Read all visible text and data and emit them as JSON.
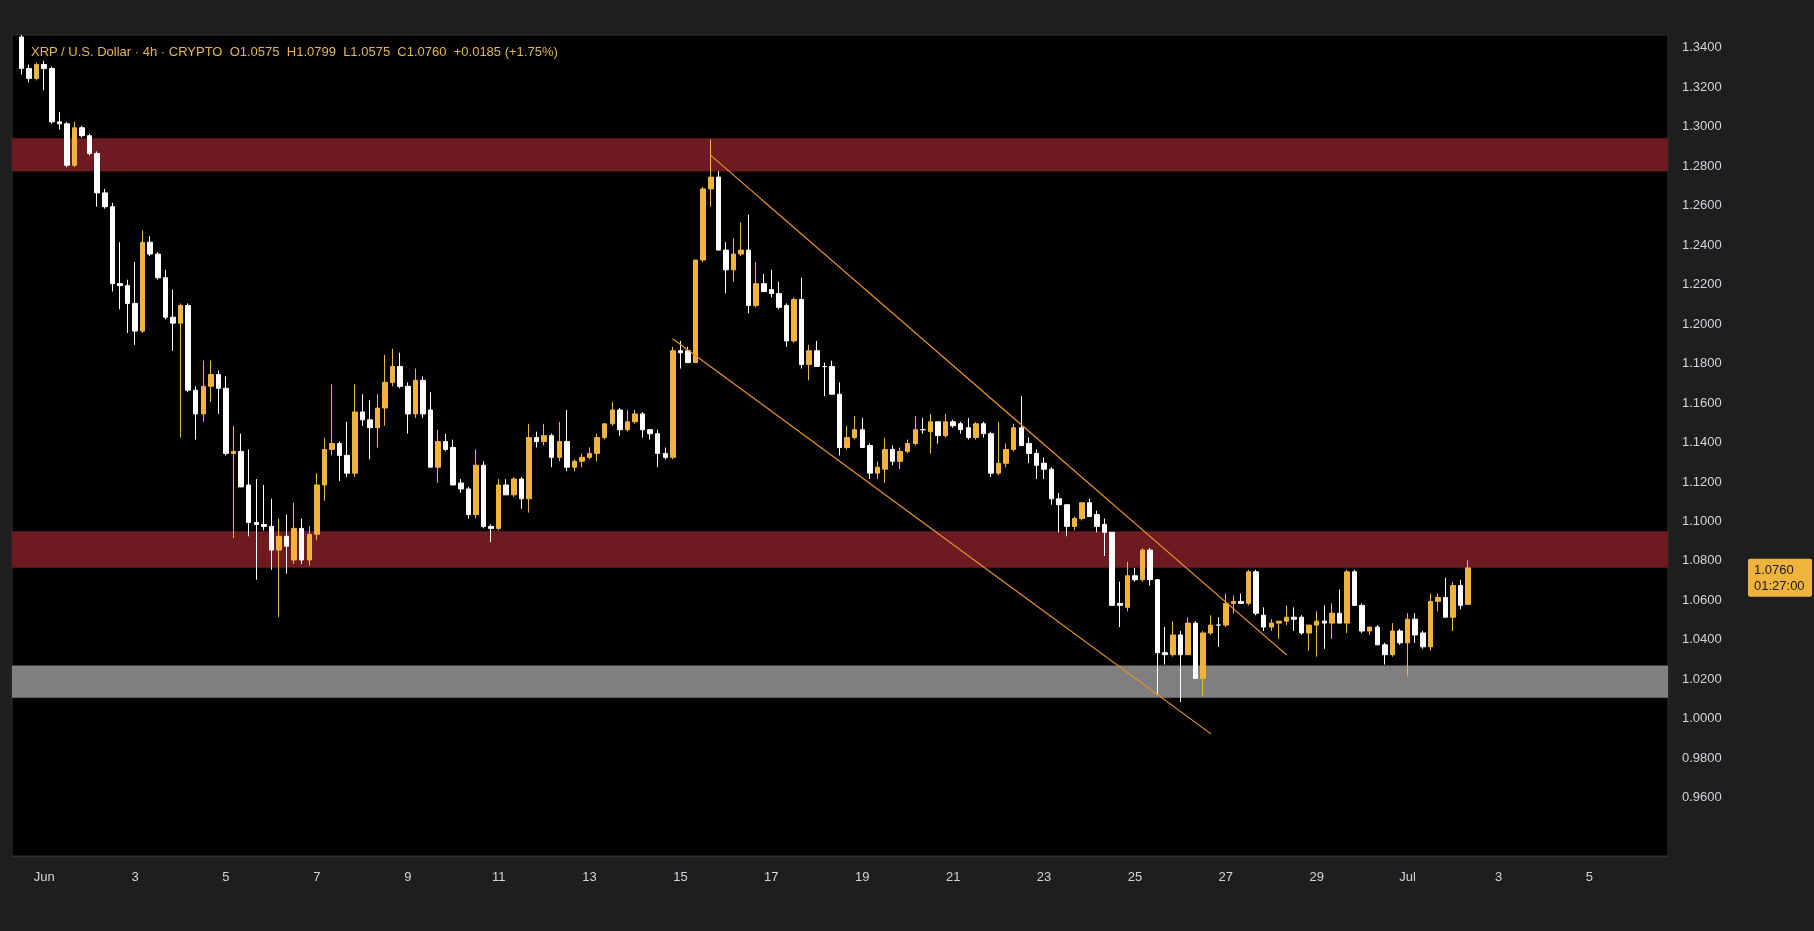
{
  "chart_data": {
    "type": "candlestick",
    "title": "XRP / U.S. Dollar · 4h · CRYPTO  O1.0575  H1.0799  L1.0575  C1.0760  +0.0185 (+1.75%)",
    "x": [
      "--05-31T12:00",
      "--05-31T16:00",
      "--05-31T20:00",
      "--06-01T00:00",
      "--06-01T04:00",
      "--06-01T08:00",
      "--06-01T12:00",
      "--06-01T16:00",
      "--06-01T20:00",
      "--06-02T00:00",
      "--06-02T04:00",
      "--06-02T08:00",
      "--06-02T12:00",
      "--06-02T16:00",
      "--06-02T20:00",
      "--06-03T00:00",
      "--06-03T04:00",
      "--06-03T08:00",
      "--06-03T12:00",
      "--06-03T16:00",
      "--06-03T20:00",
      "--06-04T00:00",
      "--06-04T04:00",
      "--06-04T08:00",
      "--06-04T12:00",
      "--06-04T16:00",
      "--06-04T20:00",
      "--06-05T00:00",
      "--06-05T04:00",
      "--06-05T08:00",
      "--06-05T12:00",
      "--06-05T16:00",
      "--06-05T20:00",
      "--06-06T00:00",
      "--06-06T04:00",
      "--06-06T08:00",
      "--06-06T12:00",
      "--06-06T16:00",
      "--06-06T20:00",
      "--06-07T00:00",
      "--06-07T04:00",
      "--06-07T08:00",
      "--06-07T12:00",
      "--06-07T16:00",
      "--06-07T20:00",
      "--06-08T00:00",
      "--06-08T04:00",
      "--06-08T08:00",
      "--06-08T12:00",
      "--06-08T16:00",
      "--06-08T20:00",
      "--06-09T00:00",
      "--06-09T04:00",
      "--06-09T08:00",
      "--06-09T12:00",
      "--06-09T16:00",
      "--06-09T20:00",
      "--06-10T00:00",
      "--06-10T04:00",
      "--06-10T08:00",
      "--06-10T12:00",
      "--06-10T16:00",
      "--06-10T20:00",
      "--06-11T00:00",
      "--06-11T04:00",
      "--06-11T08:00",
      "--06-11T12:00",
      "--06-11T16:00",
      "--06-11T20:00",
      "--06-12T00:00",
      "--06-12T04:00",
      "--06-12T08:00",
      "--06-12T12:00",
      "--06-12T16:00",
      "--06-12T20:00",
      "--06-13T00:00",
      "--06-13T04:00",
      "--06-13T08:00",
      "--06-13T12:00",
      "--06-13T16:00",
      "--06-13T20:00",
      "--06-14T00:00",
      "--06-14T04:00",
      "--06-14T08:00",
      "--06-14T12:00",
      "--06-14T16:00",
      "--06-14T20:00",
      "--06-15T00:00",
      "--06-15T04:00",
      "--06-15T08:00",
      "--06-15T12:00",
      "--06-15T16:00",
      "--06-15T20:00",
      "--06-16T00:00",
      "--06-16T04:00",
      "--06-16T08:00",
      "--06-16T12:00",
      "--06-16T16:00",
      "--06-16T20:00",
      "--06-17T00:00",
      "--06-17T04:00",
      "--06-17T08:00",
      "--06-17T12:00",
      "--06-17T16:00",
      "--06-17T20:00",
      "--06-18T00:00",
      "--06-18T04:00",
      "--06-18T08:00",
      "--06-18T12:00",
      "--06-18T16:00",
      "--06-18T20:00",
      "--06-19T00:00",
      "--06-19T04:00",
      "--06-19T08:00",
      "--06-19T12:00",
      "--06-19T16:00",
      "--06-19T20:00",
      "--06-20T00:00",
      "--06-20T04:00",
      "--06-20T08:00",
      "--06-20T12:00",
      "--06-20T16:00",
      "--06-20T20:00",
      "--06-21T00:00",
      "--06-21T04:00",
      "--06-21T08:00",
      "--06-21T12:00",
      "--06-21T16:00",
      "--06-21T20:00",
      "--06-22T00:00",
      "--06-22T04:00",
      "--06-22T08:00",
      "--06-22T12:00",
      "--06-22T16:00",
      "--06-22T20:00",
      "--06-23T00:00",
      "--06-23T04:00",
      "--06-23T08:00",
      "--06-23T12:00",
      "--06-23T16:00",
      "--06-23T20:00",
      "--06-24T00:00",
      "--06-24T04:00",
      "--06-24T08:00",
      "--06-24T12:00",
      "--06-24T16:00",
      "--06-24T20:00",
      "--06-25T00:00",
      "--06-25T04:00",
      "--06-25T08:00",
      "--06-25T12:00",
      "--06-25T16:00",
      "--06-25T20:00",
      "--06-26T00:00",
      "--06-26T04:00",
      "--06-26T08:00",
      "--06-26T12:00",
      "--06-26T16:00",
      "--06-26T20:00",
      "--06-27T00:00",
      "--06-27T04:00",
      "--06-27T08:00",
      "--06-27T12:00",
      "--06-27T16:00",
      "--06-27T20:00",
      "--06-28T00:00",
      "--06-28T04:00",
      "--06-28T08:00",
      "--06-28T12:00",
      "--06-28T16:00",
      "--06-28T20:00",
      "--06-29T00:00",
      "--06-29T04:00",
      "--06-29T08:00",
      "--06-29T12:00",
      "--06-29T16:00",
      "--06-29T20:00",
      "--06-30T00:00",
      "--06-30T04:00",
      "--06-30T08:00",
      "--06-30T12:00",
      "--06-30T16:00",
      "--06-30T20:00",
      "--07-01T00:00",
      "--07-01T04:00",
      "--07-01T08:00",
      "--07-01T12:00",
      "--07-01T16:00",
      "--07-01T20:00",
      "--07-02T00:00",
      "--07-02T04:00",
      "--07-02T08:00"
    ],
    "ohlc": [
      [
        1.345,
        1.346,
        1.326,
        1.329
      ],
      [
        1.329,
        1.331,
        1.322,
        1.324
      ],
      [
        1.324,
        1.332,
        1.323,
        1.331
      ],
      [
        1.331,
        1.333,
        1.318,
        1.329
      ],
      [
        1.329,
        1.33,
        1.301,
        1.302
      ],
      [
        1.302,
        1.307,
        1.298,
        1.301
      ],
      [
        1.301,
        1.302,
        1.279,
        1.28
      ],
      [
        1.28,
        1.302,
        1.279,
        1.299
      ],
      [
        1.299,
        1.3,
        1.294,
        1.295
      ],
      [
        1.295,
        1.296,
        1.285,
        1.286
      ],
      [
        1.286,
        1.287,
        1.259,
        1.266
      ],
      [
        1.266,
        1.268,
        1.258,
        1.259
      ],
      [
        1.259,
        1.261,
        1.216,
        1.22
      ],
      [
        1.22,
        1.241,
        1.207,
        1.219
      ],
      [
        1.219,
        1.222,
        1.195,
        1.21
      ],
      [
        1.21,
        1.231,
        1.189,
        1.196
      ],
      [
        1.196,
        1.247,
        1.195,
        1.241
      ],
      [
        1.241,
        1.244,
        1.234,
        1.235
      ],
      [
        1.235,
        1.236,
        1.222,
        1.223
      ],
      [
        1.223,
        1.227,
        1.202,
        1.203
      ],
      [
        1.203,
        1.217,
        1.186,
        1.2
      ],
      [
        1.2,
        1.21,
        1.142,
        1.209
      ],
      [
        1.209,
        1.21,
        1.165,
        1.166
      ],
      [
        1.166,
        1.168,
        1.141,
        1.154
      ],
      [
        1.154,
        1.181,
        1.15,
        1.168
      ],
      [
        1.168,
        1.181,
        1.16,
        1.174
      ],
      [
        1.174,
        1.176,
        1.154,
        1.167
      ],
      [
        1.167,
        1.173,
        1.133,
        1.134
      ],
      [
        1.134,
        1.148,
        1.091,
        1.135
      ],
      [
        1.135,
        1.144,
        1.117,
        1.117
      ],
      [
        1.118,
        1.136,
        1.092,
        1.099
      ],
      [
        1.099,
        1.121,
        1.07,
        1.098
      ],
      [
        1.098,
        1.118,
        1.095,
        1.097
      ],
      [
        1.097,
        1.111,
        1.075,
        1.085
      ],
      [
        1.085,
        1.101,
        1.051,
        1.092
      ],
      [
        1.092,
        1.103,
        1.073,
        1.087
      ],
      [
        1.08,
        1.109,
        1.078,
        1.096
      ],
      [
        1.096,
        1.101,
        1.078,
        1.08
      ],
      [
        1.08,
        1.097,
        1.077,
        1.093
      ],
      [
        1.093,
        1.124,
        1.09,
        1.118
      ],
      [
        1.118,
        1.142,
        1.11,
        1.136
      ],
      [
        1.136,
        1.169,
        1.133,
        1.139
      ],
      [
        1.139,
        1.14,
        1.12,
        1.133
      ],
      [
        1.133,
        1.15,
        1.122,
        1.124
      ],
      [
        1.124,
        1.169,
        1.122,
        1.155
      ],
      [
        1.155,
        1.164,
        1.148,
        1.151
      ],
      [
        1.151,
        1.161,
        1.131,
        1.147
      ],
      [
        1.147,
        1.164,
        1.137,
        1.157
      ],
      [
        1.157,
        1.184,
        1.148,
        1.17
      ],
      [
        1.17,
        1.187,
        1.168,
        1.178
      ],
      [
        1.178,
        1.185,
        1.167,
        1.168
      ],
      [
        1.168,
        1.17,
        1.144,
        1.154
      ],
      [
        1.154,
        1.177,
        1.152,
        1.171
      ],
      [
        1.171,
        1.173,
        1.152,
        1.154
      ],
      [
        1.156,
        1.165,
        1.127,
        1.127
      ],
      [
        1.127,
        1.146,
        1.119,
        1.14
      ],
      [
        1.14,
        1.144,
        1.135,
        1.136
      ],
      [
        1.137,
        1.141,
        1.118,
        1.118
      ],
      [
        1.119,
        1.121,
        1.114,
        1.116
      ],
      [
        1.116,
        1.117,
        1.101,
        1.103
      ],
      [
        1.103,
        1.136,
        1.101,
        1.128
      ],
      [
        1.128,
        1.13,
        1.096,
        1.097
      ],
      [
        1.097,
        1.098,
        1.089,
        1.096
      ],
      [
        1.096,
        1.121,
        1.095,
        1.118
      ],
      [
        1.118,
        1.121,
        1.113,
        1.113
      ],
      [
        1.113,
        1.122,
        1.112,
        1.121
      ],
      [
        1.121,
        1.122,
        1.106,
        1.111
      ],
      [
        1.111,
        1.149,
        1.104,
        1.142
      ],
      [
        1.142,
        1.145,
        1.137,
        1.14
      ],
      [
        1.14,
        1.149,
        1.138,
        1.143
      ],
      [
        1.143,
        1.144,
        1.127,
        1.132
      ],
      [
        1.132,
        1.15,
        1.13,
        1.14
      ],
      [
        1.14,
        1.156,
        1.125,
        1.127
      ],
      [
        1.127,
        1.131,
        1.125,
        1.13
      ],
      [
        1.13,
        1.134,
        1.127,
        1.132
      ],
      [
        1.132,
        1.137,
        1.131,
        1.134
      ],
      [
        1.134,
        1.144,
        1.13,
        1.142
      ],
      [
        1.142,
        1.149,
        1.141,
        1.149
      ],
      [
        1.149,
        1.16,
        1.148,
        1.156
      ],
      [
        1.156,
        1.157,
        1.143,
        1.146
      ],
      [
        1.146,
        1.156,
        1.145,
        1.15
      ],
      [
        1.15,
        1.156,
        1.149,
        1.154
      ],
      [
        1.154,
        1.155,
        1.142,
        1.146
      ],
      [
        1.146,
        1.146,
        1.141,
        1.144
      ],
      [
        1.144,
        1.146,
        1.127,
        1.134
      ],
      [
        1.134,
        1.137,
        1.131,
        1.132
      ],
      [
        1.132,
        1.188,
        1.131,
        1.186
      ],
      [
        1.186,
        1.191,
        1.177,
        1.185
      ],
      [
        1.186,
        1.188,
        1.18,
        1.18
      ],
      [
        1.18,
        1.232,
        1.18,
        1.232
      ],
      [
        1.232,
        1.269,
        1.231,
        1.268
      ],
      [
        1.268,
        1.293,
        1.259,
        1.274
      ],
      [
        1.274,
        1.277,
        1.237,
        1.237
      ],
      [
        1.237,
        1.241,
        1.215,
        1.227
      ],
      [
        1.227,
        1.243,
        1.221,
        1.235
      ],
      [
        1.235,
        1.251,
        1.234,
        1.237
      ],
      [
        1.237,
        1.255,
        1.205,
        1.209
      ],
      [
        1.209,
        1.231,
        1.208,
        1.22
      ],
      [
        1.22,
        1.225,
        1.216,
        1.216
      ],
      [
        1.217,
        1.227,
        1.213,
        1.215
      ],
      [
        1.215,
        1.221,
        1.207,
        1.208
      ],
      [
        1.209,
        1.21,
        1.188,
        1.191
      ],
      [
        1.191,
        1.213,
        1.19,
        1.212
      ],
      [
        1.212,
        1.223,
        1.177,
        1.179
      ],
      [
        1.179,
        1.189,
        1.171,
        1.186
      ],
      [
        1.186,
        1.191,
        1.178,
        1.178
      ],
      [
        1.178,
        1.18,
        1.163,
        1.178
      ],
      [
        1.178,
        1.181,
        1.164,
        1.164
      ],
      [
        1.164,
        1.17,
        1.133,
        1.137
      ],
      [
        1.137,
        1.148,
        1.136,
        1.142
      ],
      [
        1.142,
        1.153,
        1.141,
        1.146
      ],
      [
        1.146,
        1.152,
        1.137,
        1.137
      ],
      [
        1.138,
        1.139,
        1.121,
        1.124
      ],
      [
        1.124,
        1.13,
        1.121,
        1.127
      ],
      [
        1.126,
        1.142,
        1.119,
        1.136
      ],
      [
        1.136,
        1.138,
        1.128,
        1.13
      ],
      [
        1.13,
        1.137,
        1.126,
        1.135
      ],
      [
        1.135,
        1.141,
        1.134,
        1.139
      ],
      [
        1.139,
        1.153,
        1.138,
        1.146
      ],
      [
        1.146,
        1.152,
        1.144,
        1.146
      ],
      [
        1.145,
        1.154,
        1.134,
        1.15
      ],
      [
        1.15,
        1.15,
        1.139,
        1.143
      ],
      [
        1.143,
        1.154,
        1.142,
        1.15
      ],
      [
        1.15,
        1.151,
        1.147,
        1.148
      ],
      [
        1.149,
        1.15,
        1.144,
        1.146
      ],
      [
        1.147,
        1.152,
        1.141,
        1.142
      ],
      [
        1.142,
        1.15,
        1.141,
        1.149
      ],
      [
        1.149,
        1.15,
        1.142,
        1.144
      ],
      [
        1.144,
        1.145,
        1.122,
        1.124
      ],
      [
        1.124,
        1.15,
        1.123,
        1.129
      ],
      [
        1.129,
        1.139,
        1.127,
        1.136
      ],
      [
        1.136,
        1.149,
        1.135,
        1.147
      ],
      [
        1.147,
        1.163,
        1.138,
        1.138
      ],
      [
        1.139,
        1.142,
        1.129,
        1.134
      ],
      [
        1.134,
        1.136,
        1.121,
        1.128
      ],
      [
        1.129,
        1.132,
        1.121,
        1.126
      ],
      [
        1.126,
        1.127,
        1.108,
        1.111
      ],
      [
        1.111,
        1.114,
        1.094,
        1.108
      ],
      [
        1.108,
        1.108,
        1.092,
        1.097
      ],
      [
        1.097,
        1.102,
        1.095,
        1.101
      ],
      [
        1.101,
        1.109,
        1.1,
        1.109
      ],
      [
        1.109,
        1.111,
        1.102,
        1.102
      ],
      [
        1.103,
        1.105,
        1.094,
        1.097
      ],
      [
        1.098,
        1.101,
        1.082,
        1.094
      ],
      [
        1.094,
        1.094,
        1.057,
        1.057
      ],
      [
        1.058,
        1.069,
        1.046,
        1.057
      ],
      [
        1.056,
        1.079,
        1.054,
        1.072
      ],
      [
        1.072,
        1.076,
        1.069,
        1.07
      ],
      [
        1.07,
        1.086,
        1.069,
        1.085
      ],
      [
        1.085,
        1.086,
        1.067,
        1.07
      ],
      [
        1.07,
        1.07,
        1.012,
        1.033
      ],
      [
        1.033,
        1.046,
        1.027,
        1.032
      ],
      [
        1.032,
        1.049,
        1.031,
        1.042
      ],
      [
        1.042,
        1.044,
        1.008,
        1.032
      ],
      [
        1.032,
        1.051,
        1.032,
        1.048
      ],
      [
        1.048,
        1.049,
        1.02,
        1.02
      ],
      [
        1.02,
        1.044,
        1.011,
        1.043
      ],
      [
        1.043,
        1.052,
        1.042,
        1.047
      ],
      [
        1.047,
        1.051,
        1.036,
        1.047
      ],
      [
        1.047,
        1.063,
        1.046,
        1.058
      ],
      [
        1.058,
        1.062,
        1.053,
        1.059
      ],
      [
        1.059,
        1.063,
        1.058,
        1.058
      ],
      [
        1.058,
        1.075,
        1.057,
        1.074
      ],
      [
        1.074,
        1.075,
        1.052,
        1.053
      ],
      [
        1.052,
        1.056,
        1.044,
        1.046
      ],
      [
        1.046,
        1.05,
        1.044,
        1.048
      ],
      [
        1.048,
        1.049,
        1.04,
        1.049
      ],
      [
        1.049,
        1.057,
        1.047,
        1.051
      ],
      [
        1.051,
        1.056,
        1.044,
        1.05
      ],
      [
        1.051,
        1.052,
        1.042,
        1.043
      ],
      [
        1.043,
        1.047,
        1.034,
        1.047
      ],
      [
        1.047,
        1.054,
        1.031,
        1.049
      ],
      [
        1.049,
        1.057,
        1.035,
        1.048
      ],
      [
        1.048,
        1.058,
        1.04,
        1.053
      ],
      [
        1.053,
        1.065,
        1.048,
        1.048
      ],
      [
        1.048,
        1.075,
        1.043,
        1.074
      ],
      [
        1.074,
        1.075,
        1.057,
        1.057
      ],
      [
        1.057,
        1.058,
        1.043,
        1.044
      ],
      [
        1.044,
        1.046,
        1.042,
        1.046
      ],
      [
        1.046,
        1.047,
        1.037,
        1.037
      ],
      [
        1.037,
        1.038,
        1.027,
        1.032
      ],
      [
        1.032,
        1.048,
        1.031,
        1.044
      ],
      [
        1.044,
        1.045,
        1.037,
        1.038
      ],
      [
        1.038,
        1.053,
        1.021,
        1.05
      ],
      [
        1.05,
        1.053,
        1.038,
        1.042
      ],
      [
        1.043,
        1.044,
        1.035,
        1.036
      ],
      [
        1.036,
        1.063,
        1.034,
        1.059
      ],
      [
        1.059,
        1.063,
        1.054,
        1.061
      ],
      [
        1.061,
        1.071,
        1.051,
        1.051
      ],
      [
        1.051,
        1.069,
        1.044,
        1.067
      ],
      [
        1.067,
        1.07,
        1.055,
        1.057
      ],
      [
        1.0575,
        1.0799,
        1.0575,
        1.076
      ]
    ],
    "colors": [
      "#ffffff",
      "#ffffff",
      "#f0b43c",
      "#ffffff",
      "#ffffff",
      "#ffffff",
      "#ffffff",
      "#f0b43c",
      "#ffffff",
      "#ffffff",
      "#ffffff",
      "#ffffff",
      "#ffffff",
      "#ffffff",
      "#ffffff",
      "#ffffff",
      "#f0b43c",
      "#ffffff",
      "#ffffff",
      "#ffffff",
      "#ffffff",
      "#f0b43c",
      "#ffffff",
      "#ffffff",
      "#f0b43c",
      "#f0b43c",
      "#ffffff",
      "#ffffff",
      "#f0b43c",
      "#ffffff",
      "#ffffff",
      "#ffffff",
      "#ffffff",
      "#ffffff",
      "#f0b43c",
      "#ffffff",
      "#f0b43c",
      "#ffffff",
      "#f0b43c",
      "#f0b43c",
      "#f0b43c",
      "#f0b43c",
      "#ffffff",
      "#ffffff",
      "#f0b43c",
      "#ffffff",
      "#ffffff",
      "#f0b43c",
      "#f0b43c",
      "#f0b43c",
      "#ffffff",
      "#ffffff",
      "#f0b43c",
      "#ffffff",
      "#ffffff",
      "#f0b43c",
      "#ffffff",
      "#ffffff",
      "#ffffff",
      "#ffffff",
      "#f0b43c",
      "#ffffff",
      "#ffffff",
      "#f0b43c",
      "#ffffff",
      "#f0b43c",
      "#ffffff",
      "#f0b43c",
      "#ffffff",
      "#f0b43c",
      "#ffffff",
      "#f0b43c",
      "#ffffff",
      "#f0b43c",
      "#f0b43c",
      "#f0b43c",
      "#f0b43c",
      "#f0b43c",
      "#f0b43c",
      "#ffffff",
      "#f0b43c",
      "#f0b43c",
      "#ffffff",
      "#ffffff",
      "#ffffff",
      "#ffffff",
      "#f0b43c",
      "#ffffff",
      "#ffffff",
      "#f0b43c",
      "#f0b43c",
      "#f0b43c",
      "#ffffff",
      "#ffffff",
      "#f0b43c",
      "#f0b43c",
      "#ffffff",
      "#f0b43c",
      "#ffffff",
      "#ffffff",
      "#ffffff",
      "#ffffff",
      "#f0b43c",
      "#ffffff",
      "#f0b43c",
      "#ffffff",
      "#ffffff",
      "#ffffff",
      "#ffffff",
      "#f0b43c",
      "#f0b43c",
      "#ffffff",
      "#ffffff",
      "#f0b43c",
      "#f0b43c",
      "#ffffff",
      "#f0b43c",
      "#f0b43c",
      "#f0b43c",
      "#ffffff",
      "#f0b43c",
      "#ffffff",
      "#f0b43c",
      "#ffffff",
      "#ffffff",
      "#ffffff",
      "#f0b43c",
      "#ffffff",
      "#ffffff",
      "#f0b43c",
      "#f0b43c",
      "#f0b43c",
      "#ffffff",
      "#ffffff",
      "#ffffff",
      "#ffffff",
      "#ffffff",
      "#ffffff",
      "#ffffff",
      "#f0b43c",
      "#f0b43c",
      "#ffffff",
      "#ffffff",
      "#ffffff",
      "#ffffff",
      "#ffffff",
      "#f0b43c",
      "#ffffff",
      "#f0b43c",
      "#ffffff",
      "#ffffff",
      "#ffffff",
      "#f0b43c",
      "#ffffff",
      "#f0b43c",
      "#ffffff",
      "#f0b43c",
      "#f0b43c",
      "#ffffff",
      "#f0b43c",
      "#f0b43c",
      "#ffffff",
      "#f0b43c",
      "#ffffff",
      "#ffffff",
      "#f0b43c",
      "#f0b43c",
      "#f0b43c",
      "#ffffff",
      "#ffffff",
      "#f0b43c",
      "#f0b43c",
      "#ffffff",
      "#f0b43c",
      "#ffffff",
      "#f0b43c",
      "#ffffff",
      "#ffffff",
      "#f0b43c",
      "#ffffff",
      "#ffffff",
      "#f0b43c",
      "#ffffff",
      "#f0b43c",
      "#ffffff",
      "#ffffff",
      "#f0b43c",
      "#f0b43c",
      "#ffffff",
      "#f0b43c",
      "#ffffff",
      "#f0b43c"
    ],
    "series": [
      {
        "type": "line",
        "color": "#e8912d",
        "x": [
          "--06-15T16:00",
          "--06-28T08:00"
        ],
        "values": [
          1.285,
          1.032
        ]
      },
      {
        "type": "line",
        "color": "#e8912d",
        "x": [
          "--06-14T20:00",
          "--06-26T16:00"
        ],
        "values": [
          1.192,
          0.992
        ]
      }
    ],
    "bands": [
      {
        "axis": "y",
        "from": 1.2768,
        "to": 1.2937,
        "color": "#6d1a21"
      },
      {
        "axis": "y",
        "from": 1.0761,
        "to": 1.0946,
        "color": "#6d1a21"
      },
      {
        "axis": "y",
        "from": 1.0102,
        "to": 1.0265,
        "color": "#7f7f7f"
      }
    ],
    "annotations": [
      "1.0760",
      "01:27:00"
    ],
    "xlim": [
      "--05-31T07:00",
      "--07-06T17:30"
    ],
    "xticks": [
      {
        "value": "--06-01",
        "label": "Jun"
      },
      {
        "value": "--06-03",
        "label": "3"
      },
      {
        "value": "--06-05",
        "label": "5"
      },
      {
        "value": "--06-07",
        "label": "7"
      },
      {
        "value": "--06-09",
        "label": "9"
      },
      {
        "value": "--06-11",
        "label": "11"
      },
      {
        "value": "--06-13",
        "label": "13"
      },
      {
        "value": "--06-15",
        "label": "15"
      },
      {
        "value": "--06-17",
        "label": "17"
      },
      {
        "value": "--06-19",
        "label": "19"
      },
      {
        "value": "--06-21",
        "label": "21"
      },
      {
        "value": "--06-23",
        "label": "23"
      },
      {
        "value": "--06-25",
        "label": "25"
      },
      {
        "value": "--06-27",
        "label": "27"
      },
      {
        "value": "--06-29",
        "label": "29"
      },
      {
        "value": "--07-01",
        "label": "Jul"
      },
      {
        "value": "--07-03",
        "label": "3"
      },
      {
        "value": "--07-05",
        "label": "5"
      }
    ],
    "ylim": [
      0.93,
      1.346
    ],
    "yticks": [
      {
        "value": 0.96,
        "label": "0.9600"
      },
      {
        "value": 0.98,
        "label": "0.9800"
      },
      {
        "value": 1.0,
        "label": "1.0000"
      },
      {
        "value": 1.02,
        "label": "1.0200"
      },
      {
        "value": 1.04,
        "label": "1.0400"
      },
      {
        "value": 1.06,
        "label": "1.0600"
      },
      {
        "value": 1.08,
        "label": "1.0800"
      },
      {
        "value": 1.1,
        "label": "1.1000"
      },
      {
        "value": 1.12,
        "label": "1.1200"
      },
      {
        "value": 1.14,
        "label": "1.1400"
      },
      {
        "value": 1.16,
        "label": "1.1600"
      },
      {
        "value": 1.18,
        "label": "1.1800"
      },
      {
        "value": 1.2,
        "label": "1.2000"
      },
      {
        "value": 1.22,
        "label": "1.2200"
      },
      {
        "value": 1.24,
        "label": "1.2400"
      },
      {
        "value": 1.26,
        "label": "1.2600"
      },
      {
        "value": 1.28,
        "label": "1.2800"
      },
      {
        "value": 1.3,
        "label": "1.3000"
      },
      {
        "value": 1.32,
        "label": "1.3200"
      },
      {
        "value": 1.34,
        "label": "1.3400"
      }
    ]
  }
}
